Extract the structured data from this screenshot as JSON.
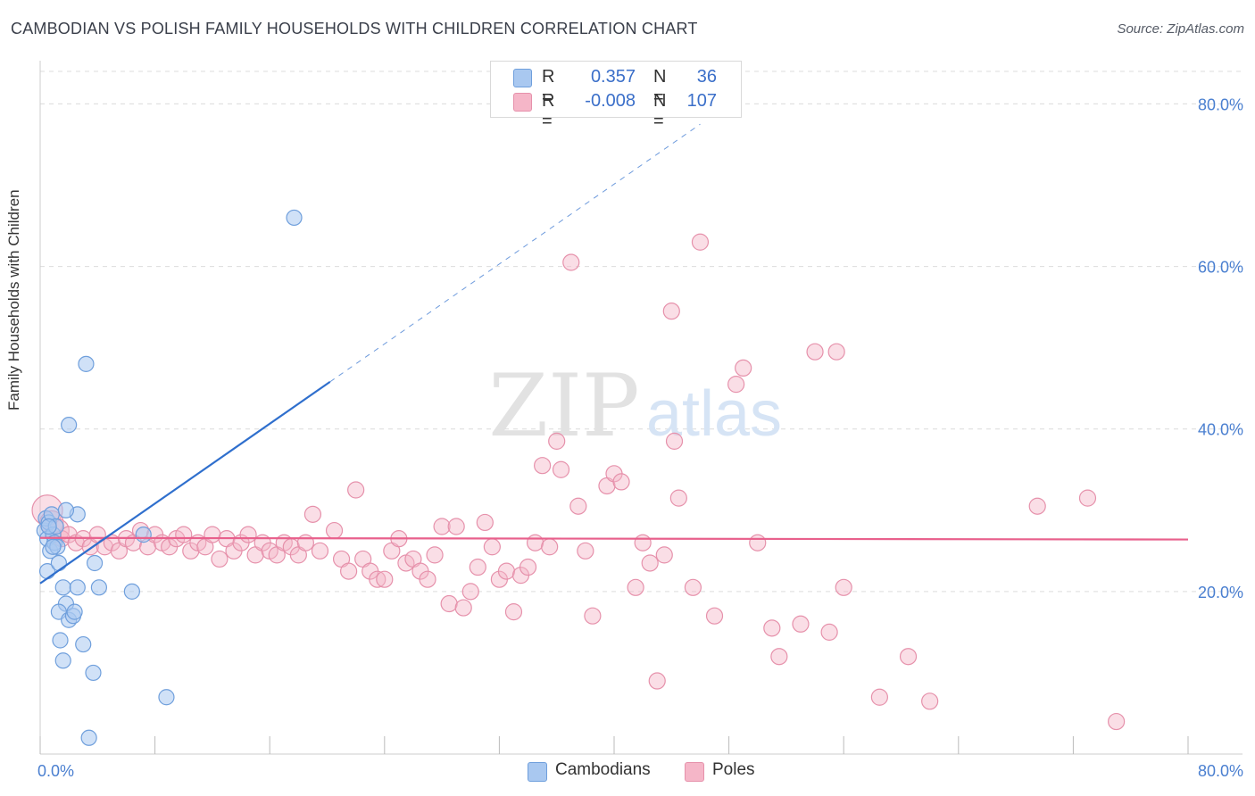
{
  "header": {
    "title": "CAMBODIAN VS POLISH FAMILY HOUSEHOLDS WITH CHILDREN CORRELATION CHART",
    "source": "Source: ZipAtlas.com"
  },
  "watermark": {
    "zip": "ZIP",
    "atlas": "atlas"
  },
  "legend": {
    "rows": [
      {
        "r_label": "R =",
        "r_value": "0.357",
        "n_label": "N =",
        "n_value": "36",
        "color": "#a9c8f0"
      },
      {
        "r_label": "R =",
        "r_value": "-0.008",
        "n_label": "N =",
        "n_value": "107",
        "color": "#f5b6c8"
      }
    ]
  },
  "bottom_legend": [
    {
      "label": "Cambodians",
      "color": "#a9c8f0"
    },
    {
      "label": "Poles",
      "color": "#f5b6c8"
    }
  ],
  "colors": {
    "cambodian_fill": "#a9c8f0",
    "cambodian_stroke": "#6f9fdc",
    "cambodian_line": "#2f6fcd",
    "poles_fill": "#f5b6c8",
    "poles_stroke": "#e691ab",
    "poles_line": "#e8608c",
    "grid": "#dcdcdc",
    "tick_label": "#4a7fd0"
  },
  "chart_data": {
    "type": "scatter",
    "title": "CAMBODIAN VS POLISH FAMILY HOUSEHOLDS WITH CHILDREN CORRELATION CHART",
    "xlabel": "",
    "ylabel": "Family Households with Children",
    "xlim": [
      0,
      80
    ],
    "ylim": [
      0,
      84
    ],
    "x_tick_labels": [
      {
        "value": 0,
        "label": "0.0%"
      },
      {
        "value": 80,
        "label": "80.0%"
      }
    ],
    "y_tick_labels": [
      {
        "value": 20,
        "label": "20.0%"
      },
      {
        "value": 40,
        "label": "40.0%"
      },
      {
        "value": 60,
        "label": "60.0%"
      },
      {
        "value": 80,
        "label": "80.0%"
      }
    ],
    "grid": "horizontal dashed",
    "legend_position": "top-center",
    "series": [
      {
        "name": "Cambodians",
        "r": 0.357,
        "n": 36,
        "trend": {
          "x0": 0,
          "y0": 21.0,
          "x1": 20.2,
          "y1": 45.8,
          "dashed_to_x": 46,
          "dashed_to_y": 77.5
        },
        "points": [
          [
            0.3,
            27.5
          ],
          [
            0.4,
            29.0
          ],
          [
            0.5,
            26.5
          ],
          [
            0.6,
            28.5
          ],
          [
            0.7,
            25.0
          ],
          [
            0.8,
            29.5
          ],
          [
            0.9,
            27.0
          ],
          [
            1.0,
            26.0
          ],
          [
            1.1,
            28.0
          ],
          [
            1.2,
            25.5
          ],
          [
            0.5,
            22.5
          ],
          [
            1.3,
            23.5
          ],
          [
            1.6,
            20.5
          ],
          [
            1.8,
            18.5
          ],
          [
            1.3,
            17.5
          ],
          [
            2.0,
            16.5
          ],
          [
            2.3,
            17.0
          ],
          [
            2.4,
            17.5
          ],
          [
            1.4,
            14.0
          ],
          [
            1.6,
            11.5
          ],
          [
            3.0,
            13.5
          ],
          [
            3.7,
            10.0
          ],
          [
            3.8,
            23.5
          ],
          [
            4.1,
            20.5
          ],
          [
            2.6,
            20.5
          ],
          [
            3.2,
            48.0
          ],
          [
            2.0,
            40.5
          ],
          [
            2.6,
            29.5
          ],
          [
            1.8,
            30.0
          ],
          [
            0.6,
            28.0
          ],
          [
            6.4,
            20.0
          ],
          [
            7.2,
            27.0
          ],
          [
            8.8,
            7.0
          ],
          [
            3.4,
            2.0
          ],
          [
            17.7,
            66.0
          ],
          [
            0.9,
            25.5
          ]
        ]
      },
      {
        "name": "Poles",
        "r": -0.008,
        "n": 107,
        "trend": {
          "x0": 0,
          "y0": 26.6,
          "x1": 80,
          "y1": 26.4
        },
        "points": [
          [
            0.5,
            30.0
          ],
          [
            0.8,
            28.5
          ],
          [
            1.2,
            27.5
          ],
          [
            1.5,
            26.5
          ],
          [
            2.0,
            27.0
          ],
          [
            2.5,
            26.0
          ],
          [
            3.0,
            26.5
          ],
          [
            3.5,
            25.5
          ],
          [
            4.0,
            27.0
          ],
          [
            4.5,
            25.5
          ],
          [
            5.0,
            26.0
          ],
          [
            5.5,
            25.0
          ],
          [
            6.0,
            26.5
          ],
          [
            6.5,
            26.0
          ],
          [
            7.0,
            27.5
          ],
          [
            7.5,
            25.5
          ],
          [
            8.0,
            27.0
          ],
          [
            8.5,
            26.0
          ],
          [
            9.0,
            25.5
          ],
          [
            9.5,
            26.5
          ],
          [
            10.0,
            27.0
          ],
          [
            10.5,
            25.0
          ],
          [
            11.0,
            26.0
          ],
          [
            11.5,
            25.5
          ],
          [
            12.0,
            27.0
          ],
          [
            12.5,
            24.0
          ],
          [
            13.0,
            26.5
          ],
          [
            13.5,
            25.0
          ],
          [
            14.0,
            26.0
          ],
          [
            14.5,
            27.0
          ],
          [
            15.0,
            24.5
          ],
          [
            15.5,
            26.0
          ],
          [
            16.0,
            25.0
          ],
          [
            16.5,
            24.5
          ],
          [
            17.0,
            26.0
          ],
          [
            17.5,
            25.5
          ],
          [
            18.0,
            24.5
          ],
          [
            18.5,
            26.0
          ],
          [
            19.0,
            29.5
          ],
          [
            19.5,
            25.0
          ],
          [
            20.5,
            27.5
          ],
          [
            21.0,
            24.0
          ],
          [
            21.5,
            22.5
          ],
          [
            22.0,
            32.5
          ],
          [
            22.5,
            24.0
          ],
          [
            23.0,
            22.5
          ],
          [
            23.5,
            21.5
          ],
          [
            24.0,
            21.5
          ],
          [
            24.5,
            25.0
          ],
          [
            25.0,
            26.5
          ],
          [
            25.5,
            23.5
          ],
          [
            26.0,
            24.0
          ],
          [
            26.5,
            22.5
          ],
          [
            27.0,
            21.5
          ],
          [
            27.5,
            24.5
          ],
          [
            28.0,
            28.0
          ],
          [
            28.5,
            18.5
          ],
          [
            29.0,
            28.0
          ],
          [
            29.5,
            18.0
          ],
          [
            30.0,
            20.0
          ],
          [
            30.5,
            23.0
          ],
          [
            31.0,
            28.5
          ],
          [
            31.5,
            25.5
          ],
          [
            32.0,
            21.5
          ],
          [
            32.5,
            22.5
          ],
          [
            33.0,
            17.5
          ],
          [
            33.5,
            22.0
          ],
          [
            34.0,
            23.0
          ],
          [
            34.5,
            26.0
          ],
          [
            35.0,
            35.5
          ],
          [
            35.5,
            25.5
          ],
          [
            36.0,
            38.5
          ],
          [
            36.3,
            35.0
          ],
          [
            37.5,
            30.5
          ],
          [
            38.0,
            25.0
          ],
          [
            38.5,
            17.0
          ],
          [
            39.5,
            33.0
          ],
          [
            40.0,
            34.5
          ],
          [
            40.5,
            33.5
          ],
          [
            41.5,
            20.5
          ],
          [
            42.0,
            26.0
          ],
          [
            42.5,
            23.5
          ],
          [
            43.0,
            9.0
          ],
          [
            43.5,
            24.5
          ],
          [
            44.0,
            54.5
          ],
          [
            44.2,
            38.5
          ],
          [
            44.5,
            31.5
          ],
          [
            45.5,
            20.5
          ],
          [
            46.0,
            63.0
          ],
          [
            47.0,
            17.0
          ],
          [
            48.5,
            45.5
          ],
          [
            49.0,
            47.5
          ],
          [
            50.0,
            26.0
          ],
          [
            51.0,
            15.5
          ],
          [
            51.5,
            12.0
          ],
          [
            53.0,
            16.0
          ],
          [
            54.0,
            49.5
          ],
          [
            55.0,
            15.0
          ],
          [
            55.5,
            49.5
          ],
          [
            56.0,
            20.5
          ],
          [
            58.5,
            7.0
          ],
          [
            60.5,
            12.0
          ],
          [
            62.0,
            6.5
          ],
          [
            69.5,
            30.5
          ],
          [
            73.0,
            31.5
          ],
          [
            75.0,
            4.0
          ],
          [
            37.0,
            60.5
          ]
        ]
      }
    ]
  }
}
